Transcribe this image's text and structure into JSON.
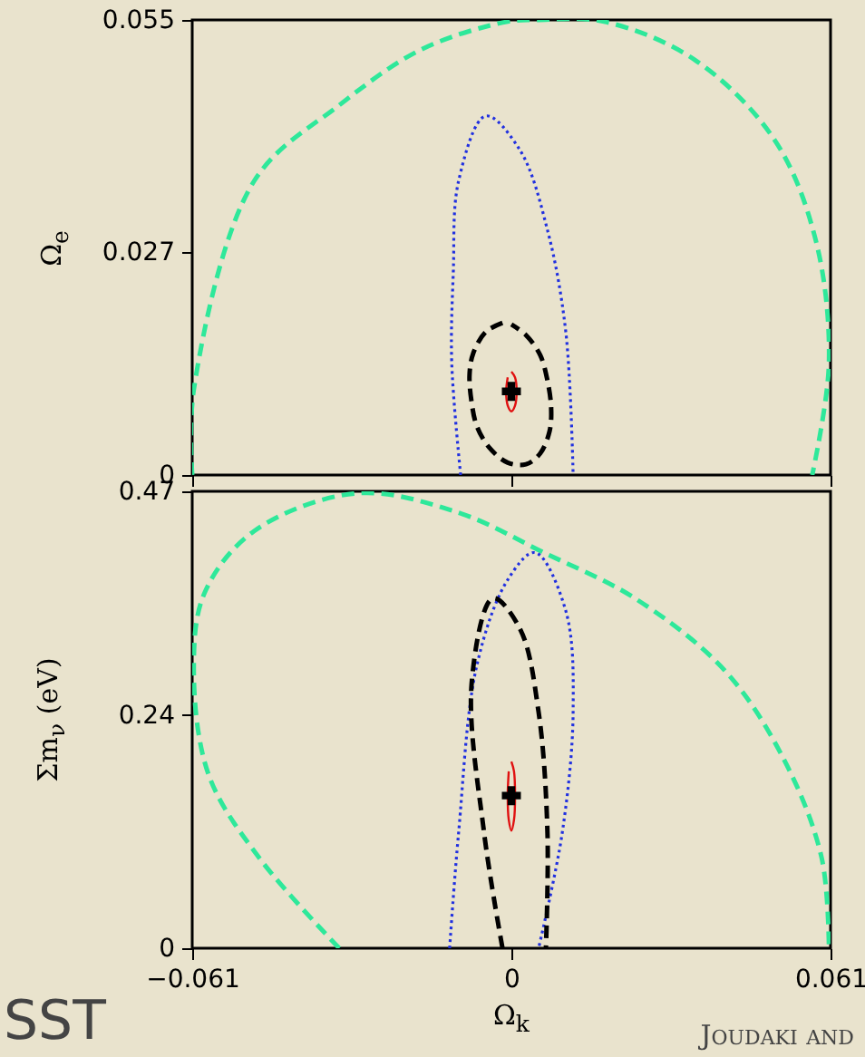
{
  "chart_data": [
    {
      "type": "line",
      "ylabel": "Ω$_{e}$",
      "xlim": [
        -0.061,
        0.061
      ],
      "xticks": [
        -0.061,
        0,
        0.061
      ],
      "ylim": [
        0,
        0.055
      ],
      "yticks": [
        0,
        0.027,
        0.055
      ],
      "tick_labels": "y",
      "grid": false,
      "series": [
        {
          "color": "#2ee89a",
          "line_style": "dashed",
          "x": [
            -0.061,
            -0.0607,
            -0.0492,
            -0.0329,
            -0.017,
            -0.0007,
            0.0049,
            0.0177,
            0.035,
            0.0503,
            0.0582,
            0.0607,
            0.0575
          ],
          "values": [
            0,
            0.0103,
            0.0355,
            0.0447,
            0.0515,
            0.0548,
            0.055,
            0.0548,
            0.0502,
            0.0405,
            0.0283,
            0.0136,
            0
          ]
        },
        {
          "color": "#2030e0",
          "line_style": "dotted",
          "x": [
            -0.0097,
            -0.0114,
            -0.0111,
            -0.0101,
            -0.0049,
            0.0017,
            0.0069,
            0.0104,
            0.0118
          ],
          "values": [
            0,
            0.0136,
            0.0245,
            0.0355,
            0.0434,
            0.0392,
            0.0296,
            0.0173,
            0
          ]
        },
        {
          "color": "#000000",
          "line_style": "dashed",
          "x": [
            -0.0017,
            -0.0049,
            -0.0073,
            -0.008,
            -0.0076,
            -0.0066,
            -0.0042,
            -0.0007,
            0.0028,
            0.0055,
            0.0073,
            0.0076,
            0.0069,
            0.0055,
            0.0028,
            0
          ],
          "values": [
            0.0184,
            0.0173,
            0.0147,
            0.0121,
            0.0088,
            0.0059,
            0.0033,
            0.0015,
            0.0013,
            0.0026,
            0.0053,
            0.0081,
            0.0114,
            0.0145,
            0.0169,
            0.0182
          ]
        },
        {
          "color": "#e01010",
          "line_style": "solid",
          "x": [
            0,
            0.0007,
            0.001,
            0.0007,
            0,
            -0.0007,
            -0.001,
            -0.0007
          ],
          "values": [
            0.0125,
            0.0118,
            0.0101,
            0.0084,
            0.0077,
            0.0084,
            0.0101,
            0.0118
          ]
        },
        {
          "type": "scatter",
          "marker": "cross",
          "color": "#000000",
          "x": [
            0
          ],
          "values": [
            0.0101
          ]
        }
      ]
    },
    {
      "type": "line",
      "xlabel": "Ω$_{k}$",
      "ylabel": "Σm$_{ν}$ (eV)",
      "xlim": [
        -0.061,
        0.061
      ],
      "xticks": [
        -0.061,
        0,
        0.061
      ],
      "ylim": [
        0,
        0.47
      ],
      "yticks": [
        0,
        0.24,
        0.47
      ],
      "grid": false,
      "annotations": [
        "SST",
        "Joudaki and"
      ],
      "series": [
        {
          "color": "#2ee89a",
          "line_style": "dashed",
          "x": [
            -0.0329,
            -0.0482,
            -0.0579,
            -0.0607,
            -0.0586,
            -0.0492,
            -0.0295,
            -0.0101,
            0.0062,
            0.0236,
            0.0409,
            0.0523,
            0.0593,
            0.0607
          ],
          "values": [
            0,
            0.093,
            0.179,
            0.291,
            0.366,
            0.429,
            0.468,
            0.448,
            0.407,
            0.36,
            0.285,
            0.192,
            0.093,
            0
          ]
        },
        {
          "color": "#2030e0",
          "line_style": "dotted",
          "x": [
            -0.0118,
            -0.0101,
            -0.0066,
            -0.0007,
            0.0045,
            0.0104,
            0.0118,
            0.0097,
            0.0052
          ],
          "values": [
            0,
            0.118,
            0.291,
            0.379,
            0.407,
            0.347,
            0.243,
            0.118,
            0
          ]
        },
        {
          "color": "#000000",
          "line_style": "dashed",
          "x": [
            -0.0017,
            -0.0052,
            -0.0076,
            -0.0035,
            0.0017,
            0.0052,
            0.0069,
            0.0066
          ],
          "values": [
            0,
            0.118,
            0.272,
            0.36,
            0.328,
            0.243,
            0.118,
            0
          ]
        },
        {
          "color": "#e01010",
          "line_style": "solid",
          "x": [
            0,
            0.0005,
            0.0007,
            0.0005,
            0,
            -0.0005,
            -0.0007,
            -0.0005
          ],
          "values": [
            0.192,
            0.182,
            0.157,
            0.132,
            0.121,
            0.132,
            0.157,
            0.182
          ]
        },
        {
          "type": "scatter",
          "marker": "cross",
          "color": "#000000",
          "x": [
            0
          ],
          "values": [
            0.157
          ]
        }
      ]
    }
  ]
}
